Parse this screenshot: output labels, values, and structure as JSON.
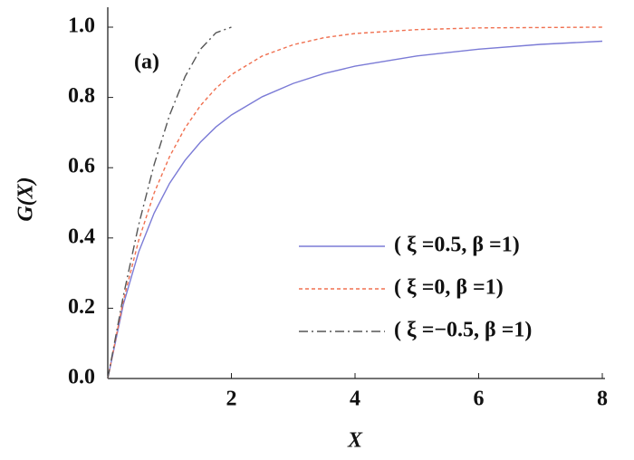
{
  "chart_data": {
    "type": "line",
    "annotation": "(a)",
    "xlabel": "X",
    "ylabel": "G(X)",
    "x": [
      0,
      0.25,
      0.5,
      0.75,
      1,
      1.25,
      1.5,
      1.75,
      2,
      2.5,
      3,
      3.5,
      4,
      5,
      6,
      7,
      8
    ],
    "series": [
      {
        "name": "( ξ =0.5, β =1)",
        "color": "#7b7bd6",
        "dash": "solid",
        "values": [
          0,
          0.21,
          0.36,
          0.471,
          0.556,
          0.621,
          0.673,
          0.716,
          0.75,
          0.802,
          0.84,
          0.868,
          0.889,
          0.918,
          0.9375,
          0.951,
          0.96
        ]
      },
      {
        "name": "( ξ =0, β =1)",
        "color": "#f07050",
        "dash": "dashed",
        "values": [
          0,
          0.221,
          0.393,
          0.528,
          0.632,
          0.713,
          0.777,
          0.826,
          0.865,
          0.918,
          0.95,
          0.97,
          0.982,
          0.993,
          0.998,
          0.999,
          1.0
        ]
      },
      {
        "name": "( ξ =−0.5, β =1)",
        "color": "#555555",
        "dash": "dashdot",
        "values": [
          0,
          0.234,
          0.4375,
          0.609,
          0.75,
          0.859,
          0.9375,
          0.984,
          1.0,
          null,
          null,
          null,
          null,
          null,
          null,
          null,
          null
        ]
      }
    ],
    "xlim": [
      0,
      8
    ],
    "ylim": [
      0,
      1
    ],
    "xticks": [
      2,
      4,
      6,
      8
    ],
    "yticks": [
      {
        "value": 0,
        "label": "0.0"
      },
      0.2,
      0.4,
      0.6,
      0.8,
      {
        "value": 1,
        "label": "1.0"
      }
    ],
    "legend": "lower right",
    "grid": false
  }
}
